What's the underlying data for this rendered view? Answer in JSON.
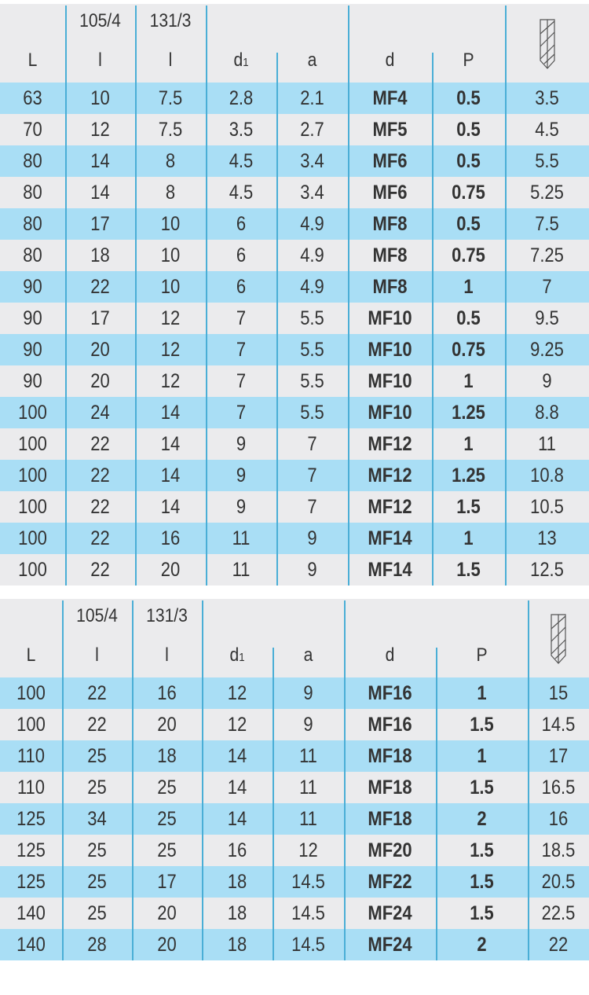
{
  "tables": [
    {
      "headers": {
        "L": "L",
        "l1_top": "105/4",
        "l1": "l",
        "l2_top": "131/3",
        "l2": "l",
        "d1": "d",
        "d1_sub": "1",
        "a": "a",
        "d": "d",
        "P": "P",
        "icon": "drill-bit-icon"
      },
      "rows": [
        [
          "63",
          "10",
          "7.5",
          "2.8",
          "2.1",
          "MF4",
          "0.5",
          "3.5"
        ],
        [
          "70",
          "12",
          "7.5",
          "3.5",
          "2.7",
          "MF5",
          "0.5",
          "4.5"
        ],
        [
          "80",
          "14",
          "8",
          "4.5",
          "3.4",
          "MF6",
          "0.5",
          "5.5"
        ],
        [
          "80",
          "14",
          "8",
          "4.5",
          "3.4",
          "MF6",
          "0.75",
          "5.25"
        ],
        [
          "80",
          "17",
          "10",
          "6",
          "4.9",
          "MF8",
          "0.5",
          "7.5"
        ],
        [
          "80",
          "18",
          "10",
          "6",
          "4.9",
          "MF8",
          "0.75",
          "7.25"
        ],
        [
          "90",
          "22",
          "10",
          "6",
          "4.9",
          "MF8",
          "1",
          "7"
        ],
        [
          "90",
          "17",
          "12",
          "7",
          "5.5",
          "MF10",
          "0.5",
          "9.5"
        ],
        [
          "90",
          "20",
          "12",
          "7",
          "5.5",
          "MF10",
          "0.75",
          "9.25"
        ],
        [
          "90",
          "20",
          "12",
          "7",
          "5.5",
          "MF10",
          "1",
          "9"
        ],
        [
          "100",
          "24",
          "14",
          "7",
          "5.5",
          "MF10",
          "1.25",
          "8.8"
        ],
        [
          "100",
          "22",
          "14",
          "9",
          "7",
          "MF12",
          "1",
          "11"
        ],
        [
          "100",
          "22",
          "14",
          "9",
          "7",
          "MF12",
          "1.25",
          "10.8"
        ],
        [
          "100",
          "22",
          "14",
          "9",
          "7",
          "MF12",
          "1.5",
          "10.5"
        ],
        [
          "100",
          "22",
          "16",
          "11",
          "9",
          "MF14",
          "1",
          "13"
        ],
        [
          "100",
          "22",
          "20",
          "11",
          "9",
          "MF14",
          "1.5",
          "12.5"
        ]
      ]
    },
    {
      "headers": {
        "L": "L",
        "l1_top": "105/4",
        "l1": "l",
        "l2_top": "131/3",
        "l2": "l",
        "d1": "d",
        "d1_sub": "1",
        "a": "a",
        "d": "d",
        "P": "P",
        "icon": "drill-bit-icon"
      },
      "rows": [
        [
          "100",
          "22",
          "16",
          "12",
          "9",
          "MF16",
          "1",
          "15"
        ],
        [
          "100",
          "22",
          "20",
          "12",
          "9",
          "MF16",
          "1.5",
          "14.5"
        ],
        [
          "110",
          "25",
          "18",
          "14",
          "11",
          "MF18",
          "1",
          "17"
        ],
        [
          "110",
          "25",
          "25",
          "14",
          "11",
          "MF18",
          "1.5",
          "16.5"
        ],
        [
          "125",
          "34",
          "25",
          "14",
          "11",
          "MF18",
          "2",
          "16"
        ],
        [
          "125",
          "25",
          "25",
          "16",
          "12",
          "MF20",
          "1.5",
          "18.5"
        ],
        [
          "125",
          "25",
          "17",
          "18",
          "14.5",
          "MF22",
          "1.5",
          "20.5"
        ],
        [
          "140",
          "25",
          "20",
          "18",
          "14.5",
          "MF24",
          "1.5",
          "22.5"
        ],
        [
          "140",
          "28",
          "20",
          "18",
          "14.5",
          "MF24",
          "2",
          "22"
        ]
      ]
    }
  ],
  "colors": {
    "background": "#ebebed",
    "stripe": "#a9def5",
    "divider": "#4aaed6",
    "text": "#333333"
  }
}
